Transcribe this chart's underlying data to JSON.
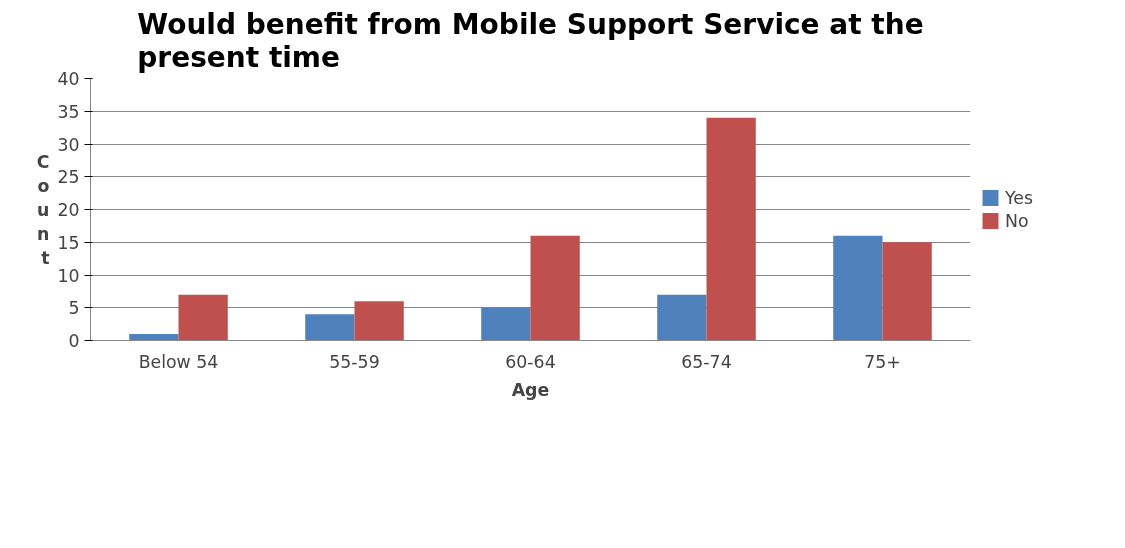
{
  "chart_data": {
    "type": "bar",
    "title": "Would benefit from Mobile Support Service at the present time",
    "xlabel": "Age",
    "ylabel": "Count",
    "categories": [
      "Below 54",
      "55-59",
      "60-64",
      "65-74",
      "75+"
    ],
    "series": [
      {
        "name": "Yes",
        "color": "#4f81bd",
        "values": [
          1,
          4,
          5,
          7,
          16
        ]
      },
      {
        "name": "No",
        "color": "#c0504d",
        "values": [
          7,
          6,
          16,
          34,
          15
        ]
      }
    ],
    "ylim": [
      0,
      40
    ],
    "yticks": [
      0,
      5,
      10,
      15,
      20,
      25,
      30,
      35,
      40
    ],
    "grid": "y",
    "legend": "right"
  }
}
